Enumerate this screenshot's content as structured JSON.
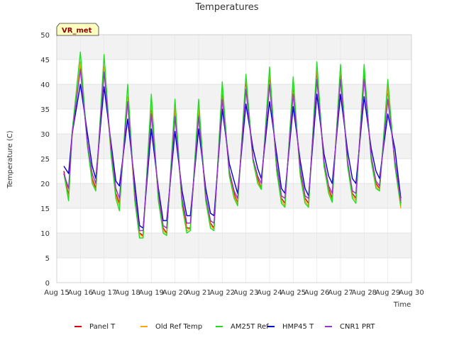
{
  "chart_data": {
    "type": "line",
    "title": "Temperatures",
    "xlabel": "Time",
    "ylabel": "Temperature (C)",
    "ylim": [
      0,
      50
    ],
    "yticks": [
      0,
      5,
      10,
      15,
      20,
      25,
      30,
      35,
      40,
      45,
      50
    ],
    "xlim": [
      15,
      30
    ],
    "xticks": [
      {
        "v": 15,
        "label": "Aug 15"
      },
      {
        "v": 16,
        "label": "Aug 16"
      },
      {
        "v": 17,
        "label": "Aug 17"
      },
      {
        "v": 18,
        "label": "Aug 18"
      },
      {
        "v": 19,
        "label": "Aug 19"
      },
      {
        "v": 20,
        "label": "Aug 20"
      },
      {
        "v": 21,
        "label": "Aug 21"
      },
      {
        "v": 22,
        "label": "Aug 22"
      },
      {
        "v": 23,
        "label": "Aug 23"
      },
      {
        "v": 24,
        "label": "Aug 24"
      },
      {
        "v": 25,
        "label": "Aug 25"
      },
      {
        "v": 26,
        "label": "Aug 26"
      },
      {
        "v": 27,
        "label": "Aug 27"
      },
      {
        "v": 28,
        "label": "Aug 28"
      },
      {
        "v": 29,
        "label": "Aug 29"
      },
      {
        "v": 30,
        "label": "Aug 30"
      }
    ],
    "grid": true,
    "legend_position": "bottom",
    "annotation": "VR_met",
    "x": [
      15.3,
      15.5,
      15.65,
      16.0,
      16.3,
      16.5,
      16.65,
      17.0,
      17.3,
      17.5,
      17.65,
      18.0,
      18.3,
      18.5,
      18.65,
      19.0,
      19.3,
      19.5,
      19.65,
      20.0,
      20.3,
      20.5,
      20.65,
      21.0,
      21.3,
      21.5,
      21.65,
      22.0,
      22.3,
      22.5,
      22.65,
      23.0,
      23.3,
      23.5,
      23.65,
      24.0,
      24.3,
      24.5,
      24.65,
      25.0,
      25.3,
      25.5,
      25.65,
      26.0,
      26.3,
      26.5,
      26.65,
      27.0,
      27.3,
      27.5,
      27.65,
      28.0,
      28.3,
      28.5,
      28.65,
      29.0,
      29.3,
      29.55
    ],
    "series": [
      {
        "name": "Panel T",
        "color": "#dd0000",
        "values": [
          22.5,
          17.5,
          30,
          44,
          28,
          21,
          19,
          43,
          26,
          18,
          16,
          37,
          17,
          10,
          9.5,
          36,
          17,
          11,
          10,
          35,
          16,
          11,
          11,
          35,
          17,
          12,
          11,
          39,
          22,
          18,
          16,
          41,
          25,
          21,
          19,
          42,
          23,
          17,
          16,
          40,
          22,
          17,
          16,
          43,
          24,
          19,
          17,
          43,
          24,
          18,
          17,
          43,
          25,
          20,
          19,
          39,
          24,
          16
        ]
      },
      {
        "name": "Old Ref Temp",
        "color": "#ffa500",
        "values": [
          22,
          17,
          29.5,
          44.5,
          27.5,
          20.5,
          18.5,
          43.5,
          25.5,
          17.5,
          15.5,
          37.5,
          16.5,
          9.8,
          9.2,
          36.5,
          16.5,
          10.5,
          9.8,
          35.5,
          15.5,
          10.5,
          10.8,
          35.5,
          16.5,
          11.5,
          10.8,
          39.5,
          21.5,
          17.5,
          15.8,
          41.5,
          24.5,
          20.5,
          18.8,
          42.5,
          22.5,
          16.5,
          15.5,
          40.5,
          21.5,
          16.5,
          15.5,
          43.5,
          23.5,
          18.5,
          16.5,
          43.5,
          23.5,
          17.5,
          16.5,
          43.5,
          24.5,
          19.5,
          18.5,
          39.5,
          23.5,
          15
        ]
      },
      {
        "name": "AM25T Ref",
        "color": "#22dd22",
        "values": [
          22,
          16.5,
          30.5,
          46.5,
          27.5,
          20,
          18.5,
          46,
          25.5,
          17,
          14.5,
          40,
          16.5,
          9,
          9,
          38,
          16.5,
          10,
          9.5,
          37,
          15.5,
          10,
          10.5,
          37,
          16.5,
          11,
          10.5,
          40.5,
          21.5,
          17,
          15.5,
          42,
          24.5,
          20,
          18.8,
          43.5,
          22.5,
          16,
          15.2,
          41.5,
          21.5,
          16,
          15.2,
          44.5,
          23.5,
          18,
          16.2,
          44,
          23.5,
          17,
          16,
          44,
          24.5,
          19,
          18.5,
          41,
          23.5,
          15.5
        ]
      },
      {
        "name": "HMP45 T",
        "color": "#0000cc",
        "values": [
          23.5,
          22,
          30,
          40,
          30,
          23.5,
          21,
          39.5,
          28,
          20.5,
          19.5,
          33,
          20,
          11.5,
          11,
          31,
          19,
          12.5,
          12.5,
          30.5,
          18.5,
          13.5,
          13.5,
          31,
          19,
          14,
          13.5,
          35,
          24,
          20.5,
          18,
          36,
          27,
          23,
          21,
          36.5,
          26,
          19,
          18,
          35.5,
          24.5,
          19,
          17.5,
          38,
          26,
          21.5,
          20,
          38,
          26.5,
          21,
          20,
          37.5,
          27,
          22.5,
          21,
          34,
          27,
          17
        ]
      },
      {
        "name": "CNR1 PRT",
        "color": "#9933cc",
        "values": [
          22,
          19,
          30,
          43,
          28,
          22,
          20,
          42.5,
          27,
          19,
          17,
          36.5,
          18,
          10.5,
          10.5,
          34,
          18,
          11.5,
          11,
          33.5,
          17,
          12,
          12,
          33.5,
          17.5,
          12.5,
          12,
          37,
          22.5,
          18.5,
          17,
          39,
          25,
          21.5,
          20,
          40,
          24,
          17.5,
          17,
          38,
          23,
          17.5,
          17,
          41,
          24.5,
          19.5,
          18,
          41,
          24.5,
          18.5,
          18,
          41,
          25.5,
          20.5,
          19.5,
          37,
          24.5,
          16.5
        ]
      }
    ]
  }
}
